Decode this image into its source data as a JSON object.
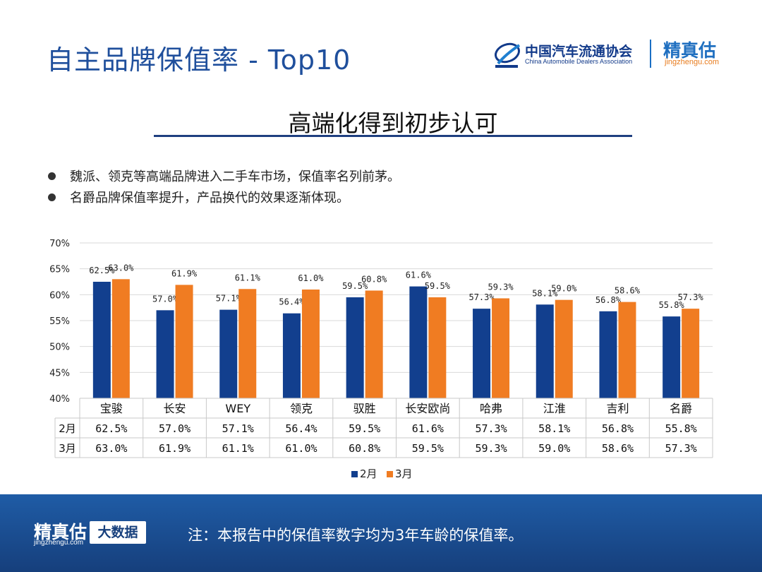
{
  "header": {
    "title": "自主品牌保值率 - Top10",
    "logo_caada_cn": "中国汽车流通协会",
    "logo_caada_en": "China Automobile Dealers Association",
    "logo_jzg": "精真估",
    "logo_jzg_url": "jingzhengu.com"
  },
  "subtitle": "高端化得到初步认可",
  "bullets": [
    "魏派、领克等高端品牌进入二手车市场，保值率名列前茅。",
    "名爵品牌保值率提升，产品换代的效果逐渐体现。"
  ],
  "chart_data": {
    "type": "bar",
    "categories": [
      "宝骏",
      "长安",
      "WEY",
      "领克",
      "驭胜",
      "长安欧尚",
      "哈弗",
      "江淮",
      "吉利",
      "名爵"
    ],
    "series": [
      {
        "name": "2月",
        "values": [
          62.5,
          57.0,
          57.1,
          56.4,
          59.5,
          61.6,
          57.3,
          58.1,
          56.8,
          55.8
        ],
        "labels": [
          "62.5%",
          "57.0%",
          "57.1%",
          "56.4%",
          "59.5%",
          "61.6%",
          "57.3%",
          "58.1%",
          "56.8%",
          "55.8%"
        ],
        "color": "#123f8e"
      },
      {
        "name": "3月",
        "values": [
          63.0,
          61.9,
          61.1,
          61.0,
          60.8,
          59.5,
          59.3,
          59.0,
          58.6,
          57.3
        ],
        "labels": [
          "63.0%",
          "61.9%",
          "61.1%",
          "61.0%",
          "60.8%",
          "59.5%",
          "59.3%",
          "59.0%",
          "58.6%",
          "57.3%"
        ],
        "color": "#f07c22"
      }
    ],
    "yticks": [
      "40%",
      "45%",
      "50%",
      "55%",
      "60%",
      "65%",
      "70%"
    ],
    "ylim": [
      40,
      70
    ],
    "grid": true,
    "legend_position": "bottom",
    "data_table": true
  },
  "footer": {
    "logo": "精真估",
    "url": "jingzhengu.com",
    "badge": "大数据",
    "note": "注：本报告中的保值率数字均为3年车龄的保值率。"
  }
}
